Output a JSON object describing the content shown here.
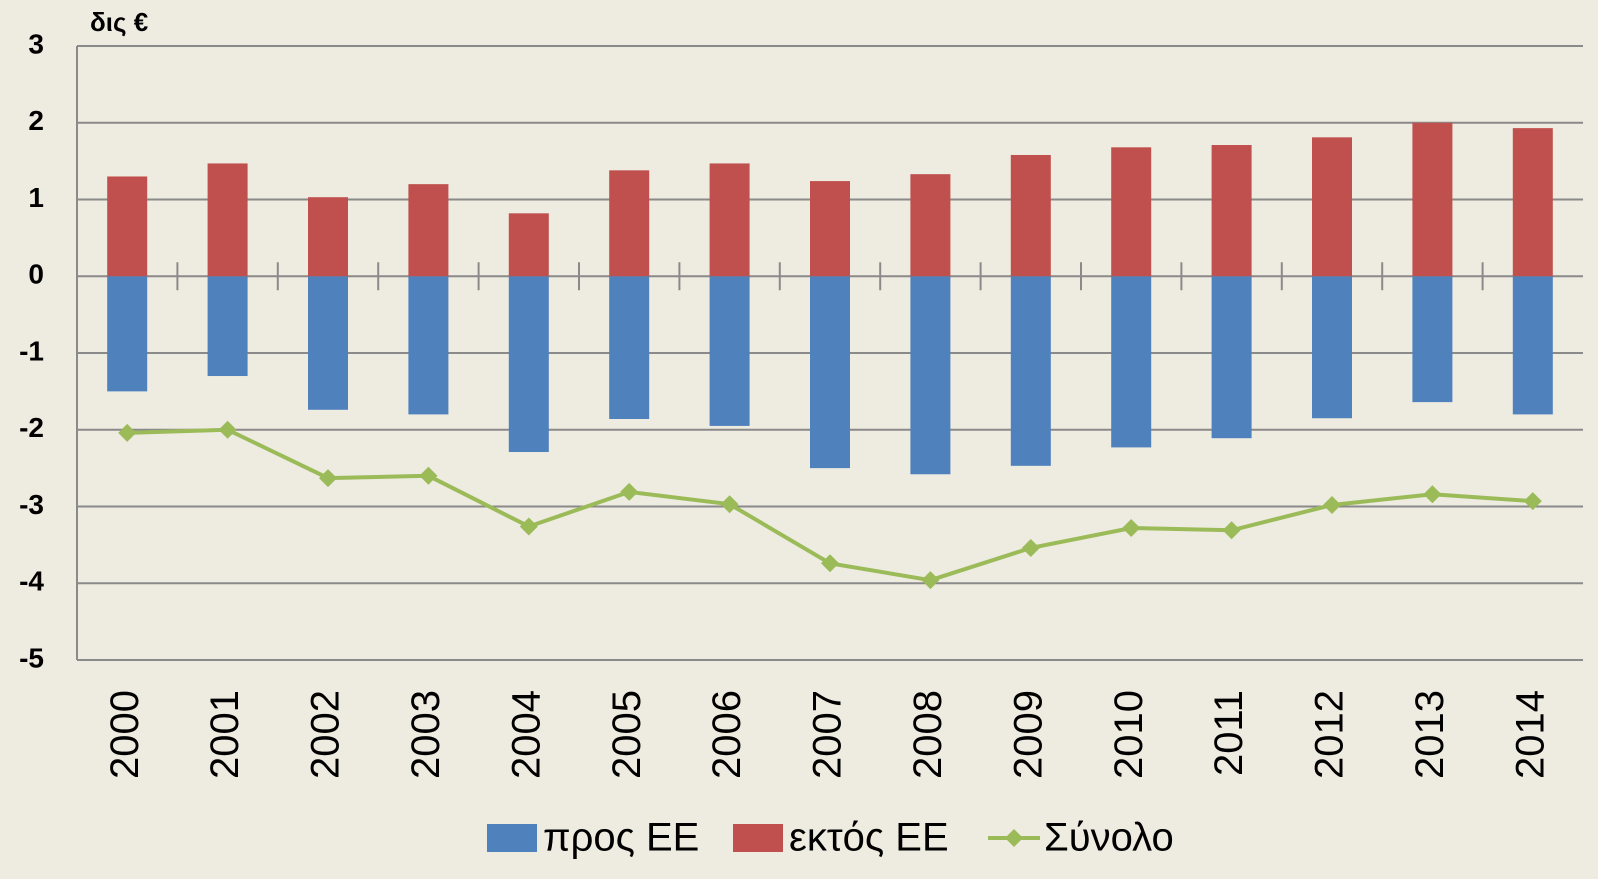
{
  "chart_data": {
    "type": "bar",
    "y_unit_label": "δις €",
    "categories": [
      "2000",
      "2001",
      "2002",
      "2003",
      "2004",
      "2005",
      "2006",
      "2007",
      "2008",
      "2009",
      "2010",
      "2011",
      "2012",
      "2013",
      "2014"
    ],
    "series": [
      {
        "name": "προς ΕΕ",
        "color": "#4f81bd",
        "type": "bar",
        "values": [
          -1.5,
          -1.3,
          -1.74,
          -1.8,
          -2.29,
          -1.86,
          -1.95,
          -2.5,
          -2.58,
          -2.47,
          -2.23,
          -2.11,
          -1.85,
          -1.64,
          -1.8
        ]
      },
      {
        "name": "εκτός ΕΕ",
        "color": "#c0504d",
        "type": "bar",
        "values": [
          1.3,
          1.47,
          1.03,
          1.2,
          0.82,
          1.38,
          1.47,
          1.24,
          1.33,
          1.58,
          1.68,
          1.71,
          1.81,
          2.0,
          1.93
        ]
      },
      {
        "name": "Σύνολο",
        "color": "#9bbb59",
        "type": "line",
        "values": [
          -2.04,
          -2.0,
          -2.63,
          -2.6,
          -3.26,
          -2.81,
          -2.97,
          -3.74,
          -3.96,
          -3.54,
          -3.28,
          -3.31,
          -2.98,
          -2.84,
          -2.93
        ]
      }
    ],
    "ylim": [
      -5,
      3
    ],
    "yticks": [
      -5,
      -4,
      -3,
      -2,
      -1,
      0,
      1,
      2,
      3
    ],
    "grid": true,
    "legend": "bottom"
  }
}
